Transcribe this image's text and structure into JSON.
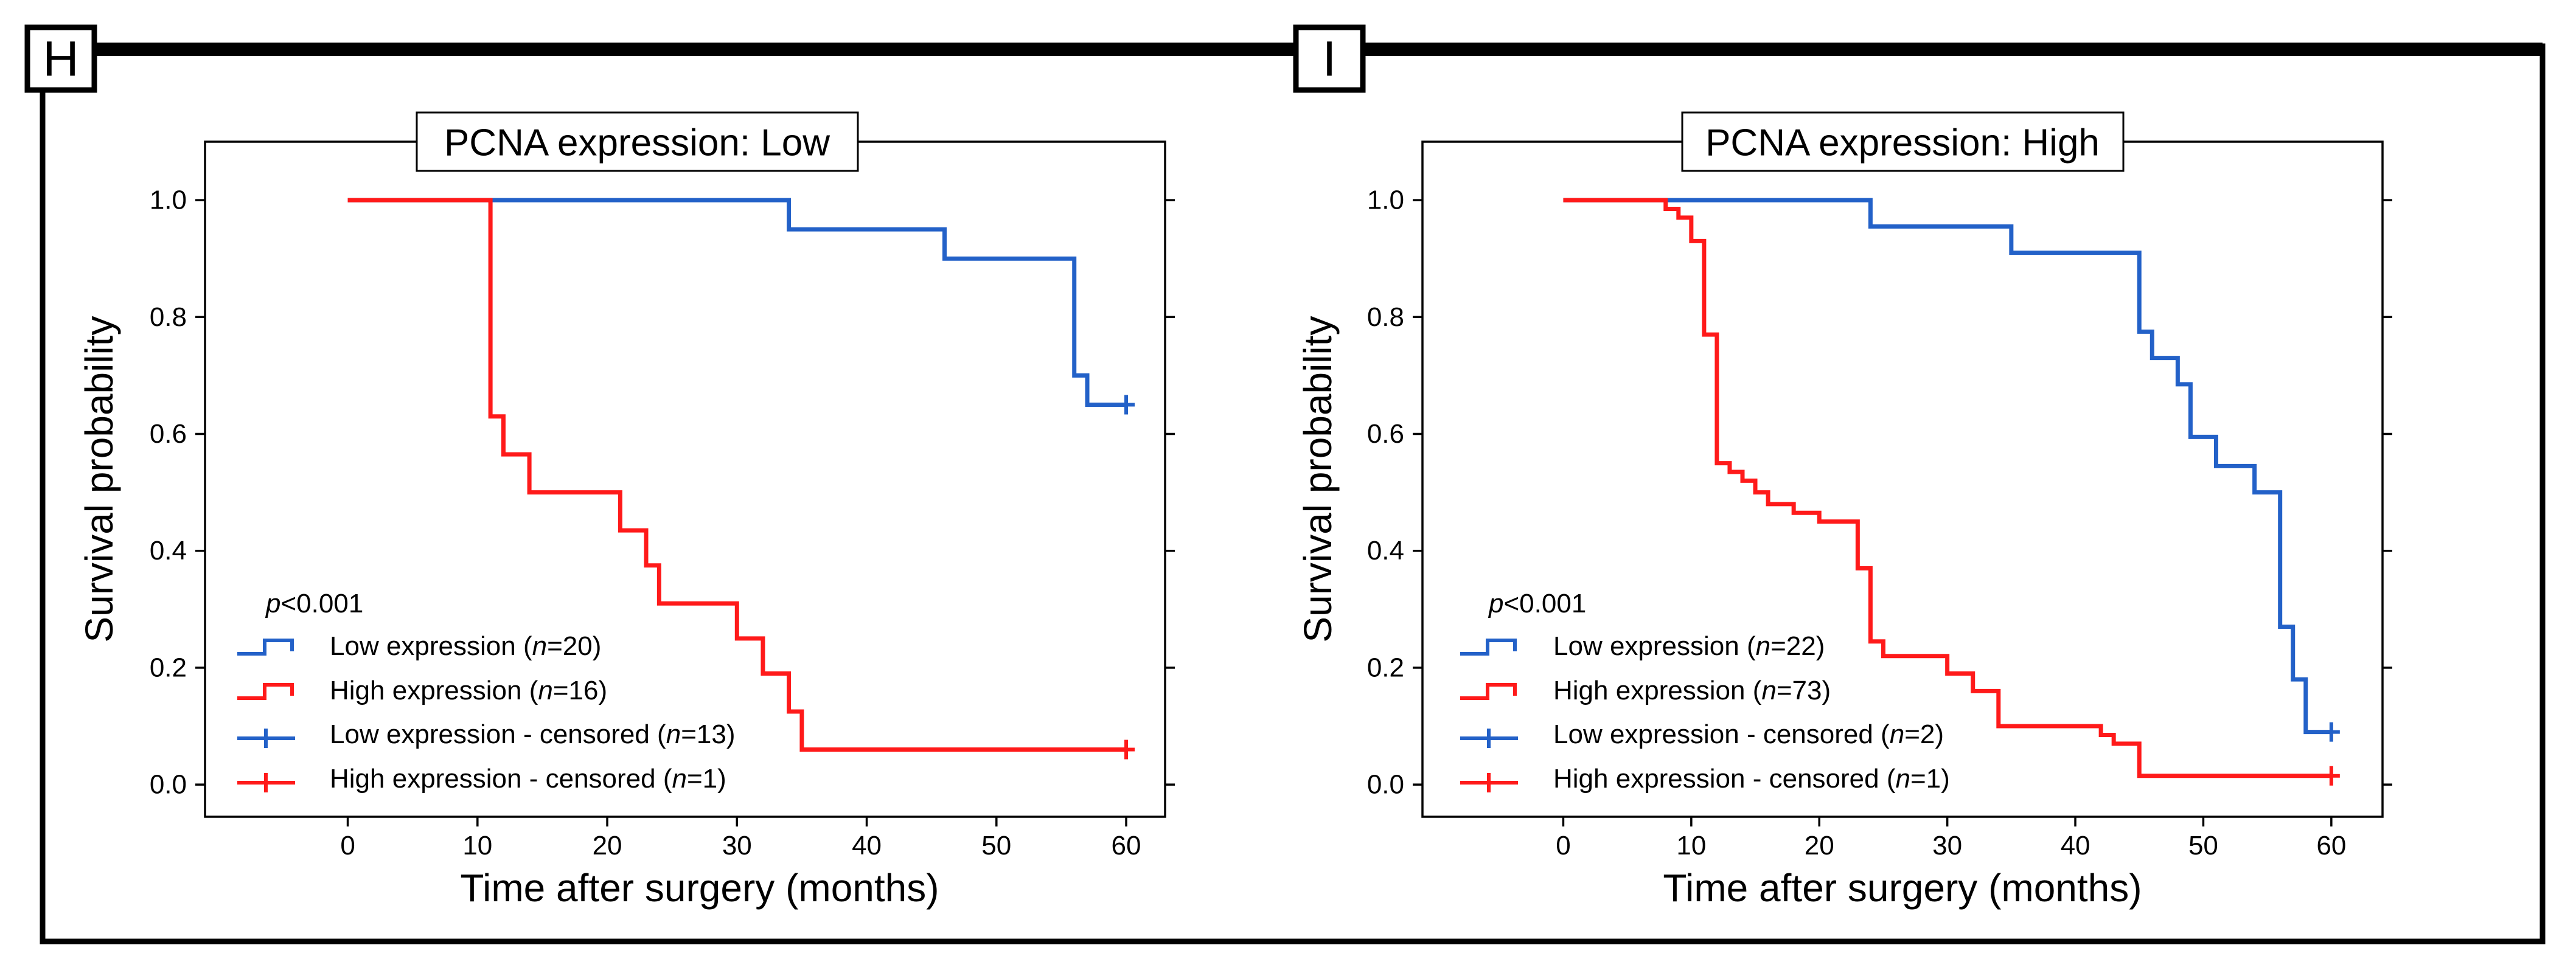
{
  "panels": [
    {
      "letter": "H",
      "title": "PCNA expression: Low"
    },
    {
      "letter": "I",
      "title": "PCNA expression: High"
    }
  ],
  "colors": {
    "low": "#2361c8",
    "high": "#ff1a1a",
    "frame": "#000000"
  },
  "legend_icons": [
    "step-line-icon",
    "step-line-icon",
    "censor-plus-icon",
    "censor-plus-icon"
  ],
  "chart_data": [
    {
      "type": "line",
      "title": "PCNA expression: Low",
      "xlabel": "Time after surgery (months)",
      "ylabel": "Survival probability",
      "xlim": [
        -11,
        63
      ],
      "ylim": [
        -0.055,
        1.1
      ],
      "x_ticks": [
        0,
        10,
        20,
        30,
        40,
        50,
        60
      ],
      "y_ticks": [
        0.0,
        0.2,
        0.4,
        0.6,
        0.8,
        1.0
      ],
      "x_tick_labels": [
        "0",
        "10",
        "20",
        "30",
        "40",
        "50",
        "60"
      ],
      "y_tick_labels": [
        "0.0",
        "0.2",
        "0.4",
        "0.6",
        "0.8",
        "1.0"
      ],
      "annotation": {
        "prefix": "p",
        "text": "<0.001"
      },
      "legend": [
        {
          "label": "Low expression (",
          "n_label": "n",
          "n_value": "=20)"
        },
        {
          "label": "High expression (",
          "n_label": "n",
          "n_value": "=16)"
        },
        {
          "label": "Low expression - censored (",
          "n_label": "n",
          "n_value": "=13)"
        },
        {
          "label": "High expression - censored (",
          "n_label": "n",
          "n_value": "=1)"
        }
      ],
      "series": [
        {
          "name": "Low expression",
          "color_key": "low",
          "times": [
            0,
            34,
            46,
            56,
            57,
            60
          ],
          "surv": [
            1.0,
            0.95,
            0.9,
            0.7,
            0.65,
            0.65
          ],
          "censored": [
            [
              60,
              0.65
            ]
          ]
        },
        {
          "name": "High expression",
          "color_key": "high",
          "times": [
            0,
            11,
            12,
            14,
            21,
            23,
            24,
            30,
            32,
            34,
            35,
            60
          ],
          "surv": [
            1.0,
            0.63,
            0.565,
            0.5,
            0.435,
            0.375,
            0.31,
            0.25,
            0.19,
            0.125,
            0.06,
            0.06
          ],
          "censored": [
            [
              60,
              0.06
            ]
          ]
        }
      ]
    },
    {
      "type": "line",
      "title": "PCNA expression: High",
      "xlabel": "Time after surgery (months)",
      "ylabel": "Survival probability",
      "xlim": [
        -11,
        64
      ],
      "ylim": [
        -0.055,
        1.1
      ],
      "x_ticks": [
        0,
        10,
        20,
        30,
        40,
        50,
        60
      ],
      "y_ticks": [
        0.0,
        0.2,
        0.4,
        0.6,
        0.8,
        1.0
      ],
      "x_tick_labels": [
        "0",
        "10",
        "20",
        "30",
        "40",
        "50",
        "60"
      ],
      "y_tick_labels": [
        "0.0",
        "0.2",
        "0.4",
        "0.6",
        "0.8",
        "1.0"
      ],
      "annotation": {
        "prefix": "p",
        "text": "<0.001"
      },
      "legend": [
        {
          "label": "Low expression (",
          "n_label": "n",
          "n_value": "=22)"
        },
        {
          "label": "High expression (",
          "n_label": "n",
          "n_value": "=73)"
        },
        {
          "label": "Low expression - censored (",
          "n_label": "n",
          "n_value": "=2)"
        },
        {
          "label": "High expression - censored (",
          "n_label": "n",
          "n_value": "=1)"
        }
      ],
      "series": [
        {
          "name": "Low expression",
          "color_key": "low",
          "times": [
            0,
            24,
            35,
            45,
            46,
            48,
            49,
            51,
            54,
            56,
            57,
            58,
            60
          ],
          "surv": [
            1.0,
            0.955,
            0.91,
            0.775,
            0.73,
            0.685,
            0.595,
            0.545,
            0.5,
            0.27,
            0.18,
            0.09,
            0.09
          ],
          "censored": [
            [
              60,
              0.09
            ]
          ]
        },
        {
          "name": "High expression",
          "color_key": "high",
          "times": [
            0,
            8,
            9,
            10,
            11,
            12,
            13,
            14,
            15,
            16,
            18,
            20,
            23,
            24,
            25,
            30,
            32,
            34,
            42,
            43,
            45,
            60
          ],
          "surv": [
            1.0,
            0.985,
            0.97,
            0.93,
            0.77,
            0.55,
            0.535,
            0.52,
            0.5,
            0.48,
            0.465,
            0.45,
            0.37,
            0.245,
            0.22,
            0.19,
            0.16,
            0.1,
            0.085,
            0.07,
            0.015,
            0.015
          ],
          "censored": [
            [
              60,
              0.015
            ]
          ]
        }
      ]
    }
  ]
}
